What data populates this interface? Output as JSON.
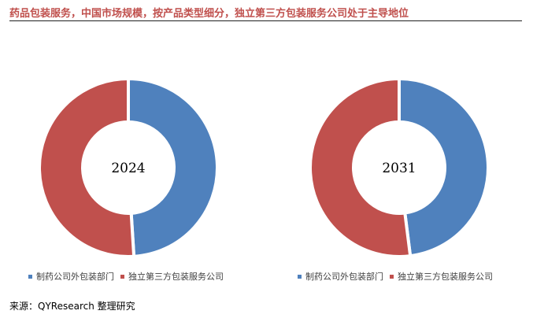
{
  "header": {
    "title": "药品包装服务，中国市场规模，按产品类型细分，独立第三方包装服务公司处于主导地位"
  },
  "source": "来源：QYResearch 整理研究",
  "colors": {
    "series_a": "#4f81bd",
    "series_b": "#c0504d"
  },
  "chart_data": [
    {
      "type": "pie",
      "donut": true,
      "center_label": "2024",
      "categories": [
        "制药公司外包装部门",
        "独立第三方包装服务公司"
      ],
      "values": [
        49,
        51
      ],
      "legend": "bottom"
    },
    {
      "type": "pie",
      "donut": true,
      "center_label": "2031",
      "categories": [
        "制药公司外包装部门",
        "独立第三方包装服务公司"
      ],
      "values": [
        48,
        52
      ],
      "legend": "bottom"
    }
  ]
}
